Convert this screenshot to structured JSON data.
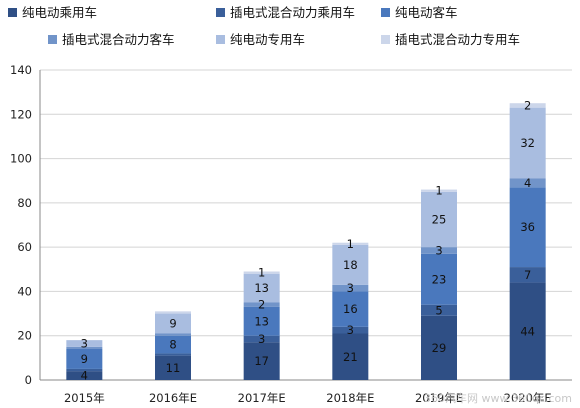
{
  "chart_data": {
    "type": "bar",
    "stacked": true,
    "title": "",
    "xlabel": "",
    "ylabel": "",
    "ylim": [
      0,
      140
    ],
    "yticks": [
      0,
      20,
      40,
      60,
      80,
      100,
      120,
      140
    ],
    "grid": true,
    "legend_position": "top",
    "categories": [
      "2015年",
      "2016年E",
      "2017年E",
      "2018年E",
      "2019年E",
      "2020年E"
    ],
    "series": [
      {
        "name": "纯电动乘用车",
        "color": "#2f4f85",
        "values": [
          4,
          11,
          17,
          21,
          29,
          44
        ]
      },
      {
        "name": "插电式混合动力乘用车",
        "color": "#3a5f9a",
        "values": [
          1,
          1,
          3,
          3,
          5,
          7
        ]
      },
      {
        "name": "纯电动客车",
        "color": "#4a78bd",
        "values": [
          9,
          8,
          13,
          16,
          23,
          36
        ]
      },
      {
        "name": "插电式混合动力客车",
        "color": "#7194c9",
        "values": [
          1,
          1,
          2,
          3,
          3,
          4
        ]
      },
      {
        "name": "纯电动专用车",
        "color": "#a9bde0",
        "values": [
          3,
          9,
          13,
          18,
          25,
          32
        ]
      },
      {
        "name": "插电式混合动力专用车",
        "color": "#ccd6ea",
        "values": [
          0,
          1,
          1,
          1,
          1,
          2
        ]
      }
    ],
    "data_labels": [
      [
        "4",
        "",
        "9",
        "",
        "3",
        ""
      ],
      [
        "11",
        "",
        "8",
        "",
        "9",
        ""
      ],
      [
        "17",
        "3",
        "13",
        "2",
        "13",
        "1"
      ],
      [
        "21",
        "3",
        "16",
        "3",
        "18",
        "1"
      ],
      [
        "29",
        "5",
        "23",
        "3",
        "25",
        "1"
      ],
      [
        "44",
        "7",
        "36",
        "4",
        "32",
        "2"
      ]
    ]
  },
  "watermark": "360汽车网 www.360qc.com"
}
